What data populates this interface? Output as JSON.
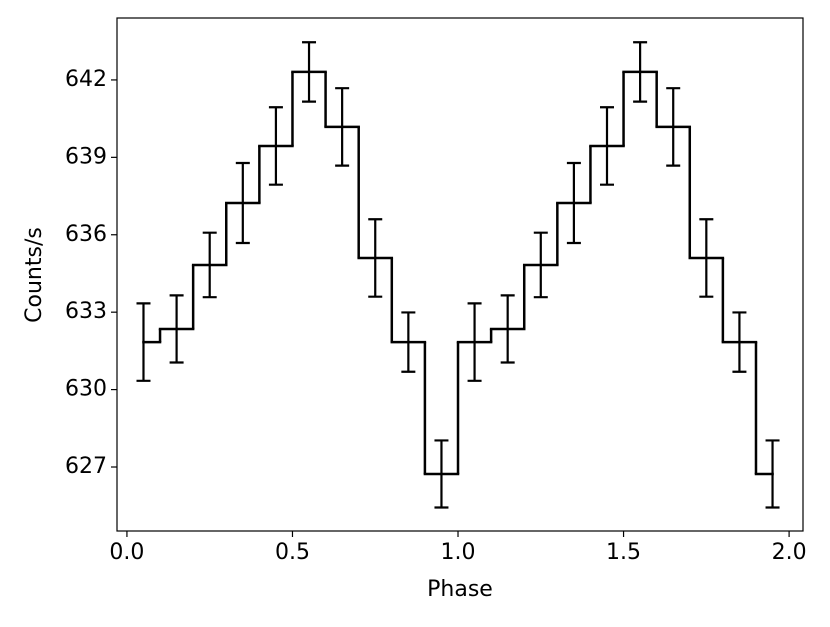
{
  "chart_data": {
    "type": "step",
    "x_label": "Phase",
    "y_label": "Counts/s",
    "x": [
      0.05,
      0.15,
      0.25,
      0.35,
      0.45,
      0.55,
      0.65,
      0.75,
      0.85,
      0.95,
      1.05,
      1.15,
      1.25,
      1.35,
      1.45,
      1.55,
      1.65,
      1.75,
      1.85,
      1.95
    ],
    "values": [
      631.84,
      632.35,
      634.83,
      637.23,
      639.44,
      642.31,
      640.18,
      635.1,
      631.84,
      626.73,
      631.84,
      632.35,
      634.83,
      637.23,
      639.44,
      642.31,
      640.18,
      635.1,
      631.84,
      626.73
    ],
    "errors": [
      1.5,
      1.3,
      1.25,
      1.55,
      1.5,
      1.15,
      1.5,
      1.5,
      1.15,
      1.3,
      1.5,
      1.3,
      1.25,
      1.55,
      1.5,
      1.15,
      1.5,
      1.5,
      1.15,
      1.3
    ],
    "color": "#000000",
    "xlim": [
      -0.03,
      2.042
    ],
    "ylim": [
      624.52,
      644.4
    ],
    "xticks": [
      {
        "value": 0,
        "label": "0.0"
      },
      0.5,
      {
        "value": 1,
        "label": "1.0"
      },
      1.5,
      {
        "value": 2,
        "label": "2.0"
      }
    ],
    "yticks": [
      627,
      630,
      633,
      636,
      639,
      642
    ]
  }
}
